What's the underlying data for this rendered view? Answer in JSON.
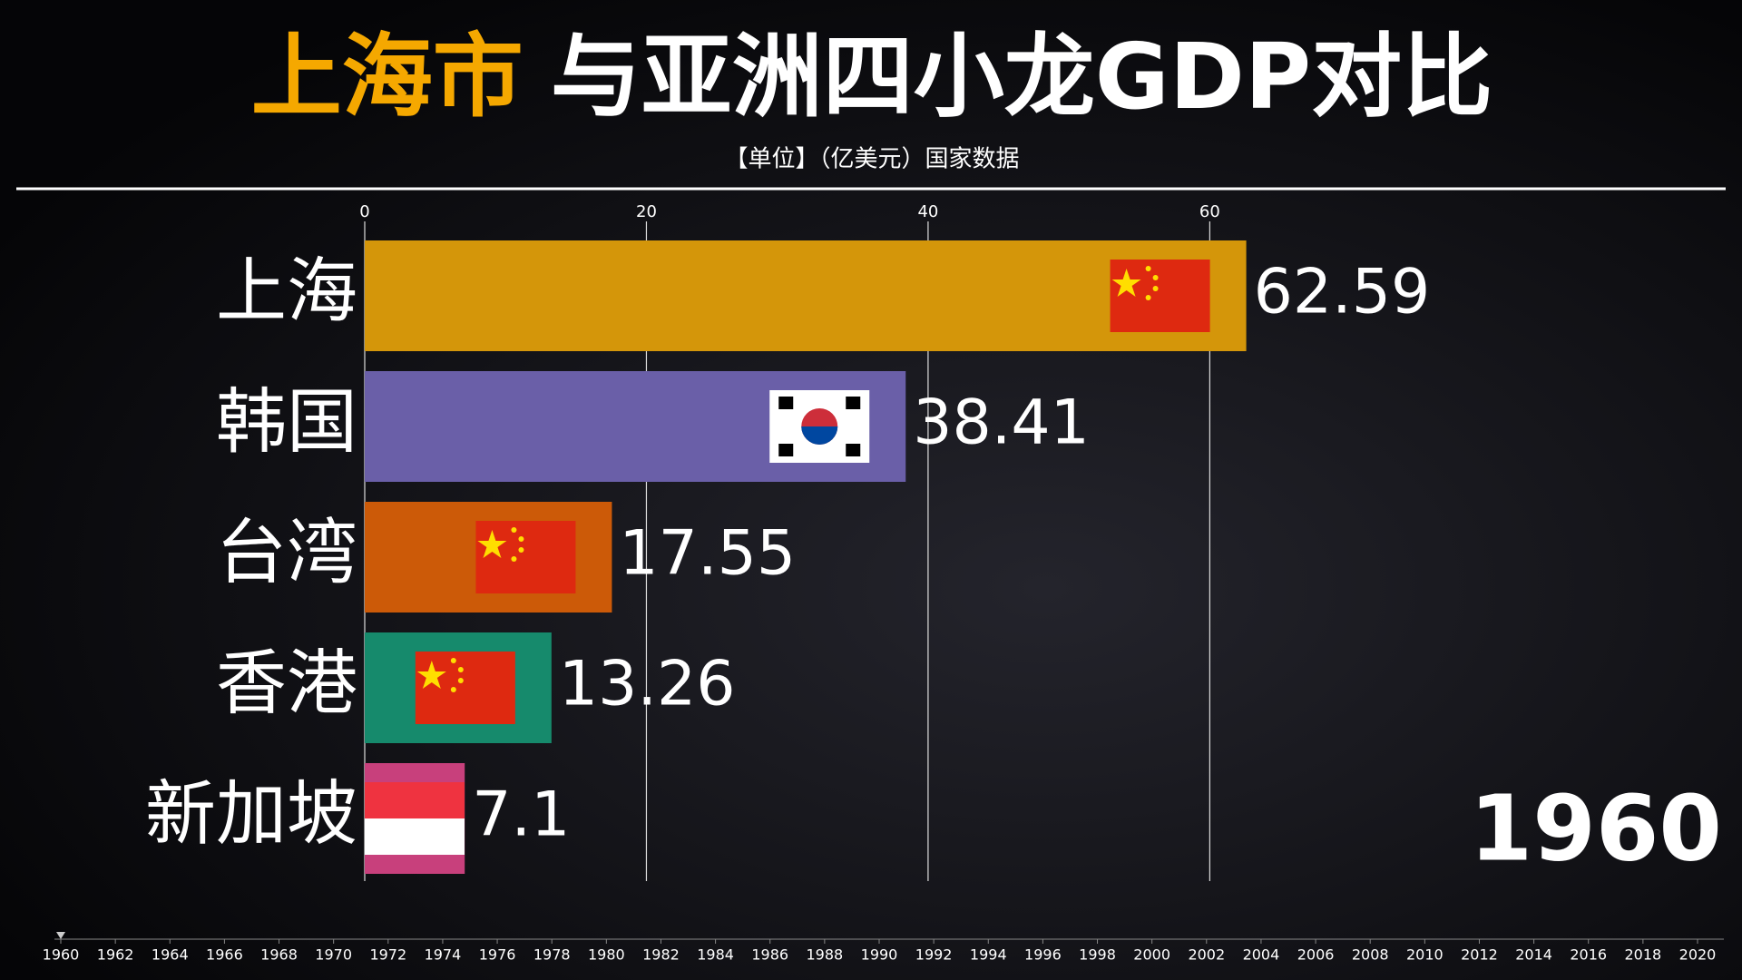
{
  "chart_data": {
    "type": "bar",
    "orientation": "horizontal",
    "title_prefix": "上海市",
    "title": "与亚洲四小龙GDP对比",
    "subtitle": "【单位】（亿美元）国家数据",
    "categories": [
      "上海",
      "韩国",
      "台湾",
      "香港",
      "新加坡"
    ],
    "values": [
      62.59,
      38.41,
      17.55,
      13.26,
      7.1
    ],
    "colors": [
      "#d4960a",
      "#6a5fa8",
      "#cc5a08",
      "#168a6c",
      "#c8407c"
    ],
    "xlim": [
      0,
      65
    ],
    "xticks": [
      0,
      20,
      40,
      60
    ],
    "grid": true,
    "year": "1960",
    "timeline": [
      1960,
      1962,
      1964,
      1966,
      1968,
      1970,
      1972,
      1974,
      1976,
      1978,
      1980,
      1982,
      1984,
      1986,
      1988,
      1990,
      1992,
      1994,
      1996,
      1998,
      2000,
      2002,
      2004,
      2006,
      2008,
      2010,
      2012,
      2014,
      2016,
      2018,
      2020
    ]
  }
}
